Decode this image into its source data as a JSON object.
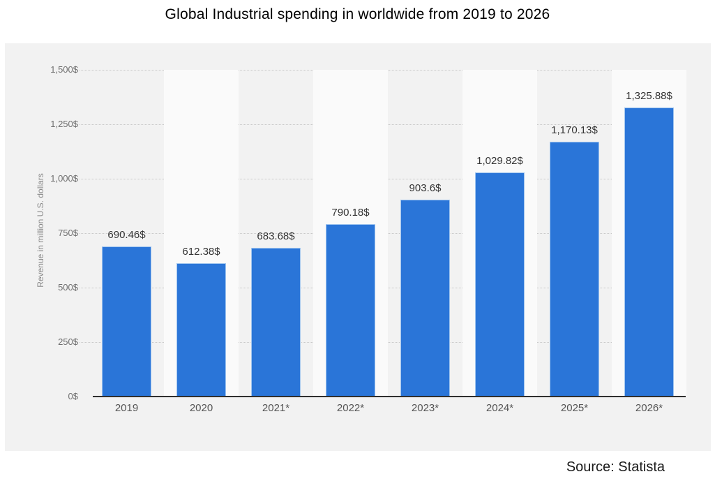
{
  "header": {
    "title": "Global Industrial spending in worldwide from 2019 to 2026"
  },
  "footer": {
    "source": "Source: Statista"
  },
  "chart_data": {
    "type": "bar",
    "title": "Global Industrial spending in worldwide from 2019 to 2026",
    "categories": [
      "2019",
      "2020",
      "2021*",
      "2022*",
      "2023*",
      "2024*",
      "2025*",
      "2026*"
    ],
    "values": [
      690.46,
      612.38,
      683.68,
      790.18,
      903.6,
      1029.82,
      1170.13,
      1325.88
    ],
    "value_labels": [
      "690.46$",
      "612.38$",
      "683.68$",
      "790.18$",
      "903.6$",
      "1,029.82$",
      "1,170.13$",
      "1,325.88$"
    ],
    "xlabel": "",
    "ylabel": "Revenue in million U.S. dollars",
    "ylim": [
      0,
      1500
    ],
    "yticks": [
      0,
      250,
      500,
      750,
      1000,
      1250,
      1500
    ],
    "ytick_labels": [
      "0$",
      "250$",
      "500$",
      "750$",
      "1,000$",
      "1,250$",
      "1,500$"
    ],
    "bar_color": "#2a75d8",
    "panel_background": "#f2f2f2",
    "stripe_background": "#fafafa",
    "grid": "horizontal-dotted",
    "legend": "none",
    "source": "Source: Statista"
  }
}
